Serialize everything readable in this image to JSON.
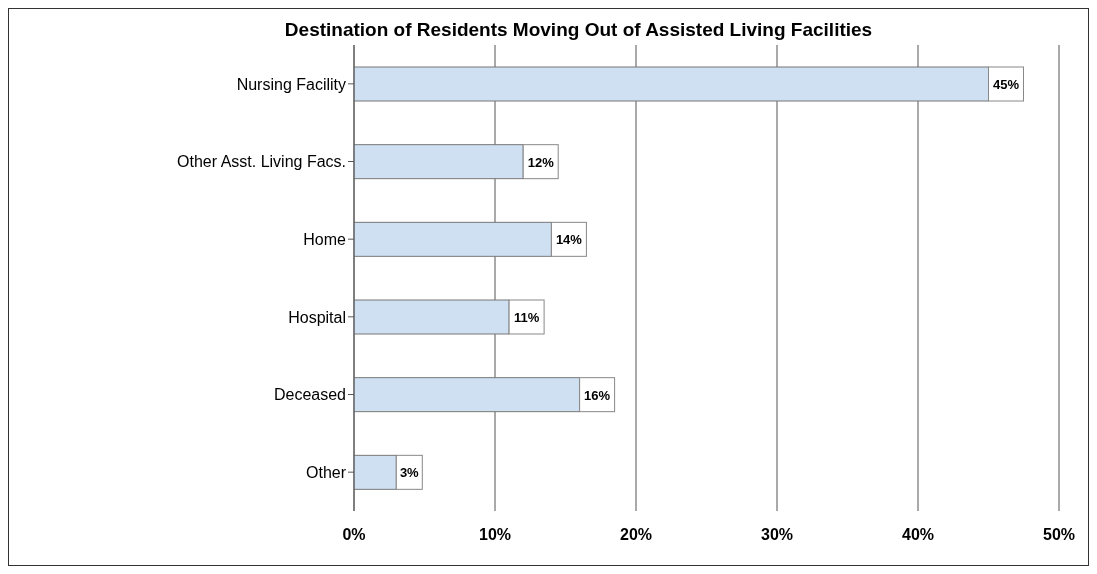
{
  "chart_data": {
    "type": "bar",
    "orientation": "horizontal",
    "title": "Destination of Residents Moving Out of Assisted Living Facilities",
    "categories": [
      "Nursing Facility",
      "Other Asst. Living Facs.",
      "Home",
      "Hospital",
      "Deceased",
      "Other"
    ],
    "values": [
      45,
      12,
      14,
      11,
      16,
      3
    ],
    "value_labels": [
      "45%",
      "12%",
      "14%",
      "11%",
      "16%",
      "3%"
    ],
    "color": "#cfe0f2",
    "xlim": [
      0,
      50
    ],
    "xticks": [
      {
        "value": 0,
        "label": "0%"
      },
      {
        "value": 10,
        "label": "10%"
      },
      {
        "value": 20,
        "label": "20%"
      },
      {
        "value": 30,
        "label": "30%"
      },
      {
        "value": 40,
        "label": "40%"
      },
      {
        "value": 50,
        "label": "50%"
      }
    ],
    "grid": "x"
  }
}
